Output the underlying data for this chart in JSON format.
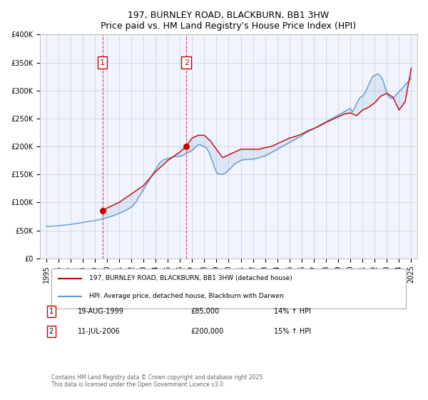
{
  "title": "197, BURNLEY ROAD, BLACKBURN, BB1 3HW",
  "subtitle": "Price paid vs. HM Land Registry's House Price Index (HPI)",
  "xlabel": "",
  "ylabel": "",
  "ylim": [
    0,
    400000
  ],
  "yticks": [
    0,
    50000,
    100000,
    150000,
    200000,
    250000,
    300000,
    350000,
    400000
  ],
  "ytick_labels": [
    "£0",
    "£50K",
    "£100K",
    "£150K",
    "£200K",
    "£250K",
    "£300K",
    "£350K",
    "£400K"
  ],
  "background_color": "#f0f4ff",
  "plot_bg_color": "#f0f4ff",
  "grid_color": "#cccccc",
  "line1_color": "#cc0000",
  "line2_color": "#6699cc",
  "sale1_year": 1999.63,
  "sale1_price": 85000,
  "sale2_year": 2006.53,
  "sale2_price": 200000,
  "sale1_label": "1",
  "sale2_label": "2",
  "legend_line1": "197, BURNLEY ROAD, BLACKBURN, BB1 3HW (detached house)",
  "legend_line2": "HPI: Average price, detached house, Blackburn with Darwen",
  "table_rows": [
    {
      "num": "1",
      "date": "19-AUG-1999",
      "price": "£85,000",
      "hpi": "14% ↑ HPI"
    },
    {
      "num": "2",
      "date": "11-JUL-2006",
      "price": "£200,000",
      "hpi": "15% ↑ HPI"
    }
  ],
  "footnote": "Contains HM Land Registry data © Crown copyright and database right 2025.\nThis data is licensed under the Open Government Licence v3.0.",
  "hpi_data": {
    "years": [
      1995.0,
      1995.08,
      1995.17,
      1995.25,
      1995.33,
      1995.42,
      1995.5,
      1995.58,
      1995.67,
      1995.75,
      1995.83,
      1995.92,
      1996.0,
      1996.08,
      1996.17,
      1996.25,
      1996.33,
      1996.42,
      1996.5,
      1996.58,
      1996.67,
      1996.75,
      1996.83,
      1996.92,
      1997.0,
      1997.08,
      1997.17,
      1997.25,
      1997.33,
      1997.42,
      1997.5,
      1997.58,
      1997.67,
      1997.75,
      1997.83,
      1997.92,
      1998.0,
      1998.08,
      1998.17,
      1998.25,
      1998.33,
      1998.42,
      1998.5,
      1998.58,
      1998.67,
      1998.75,
      1998.83,
      1998.92,
      1999.0,
      1999.08,
      1999.17,
      1999.25,
      1999.33,
      1999.42,
      1999.5,
      1999.58,
      1999.67,
      1999.75,
      1999.83,
      1999.92,
      2000.0,
      2000.08,
      2000.17,
      2000.25,
      2000.33,
      2000.42,
      2000.5,
      2000.58,
      2000.67,
      2000.75,
      2000.83,
      2000.92,
      2001.0,
      2001.08,
      2001.17,
      2001.25,
      2001.33,
      2001.42,
      2001.5,
      2001.58,
      2001.67,
      2001.75,
      2001.83,
      2001.92,
      2002.0,
      2002.08,
      2002.17,
      2002.25,
      2002.33,
      2002.42,
      2002.5,
      2002.58,
      2002.67,
      2002.75,
      2002.83,
      2002.92,
      2003.0,
      2003.08,
      2003.17,
      2003.25,
      2003.33,
      2003.42,
      2003.5,
      2003.58,
      2003.67,
      2003.75,
      2003.83,
      2003.92,
      2004.0,
      2004.08,
      2004.17,
      2004.25,
      2004.33,
      2004.42,
      2004.5,
      2004.58,
      2004.67,
      2004.75,
      2004.83,
      2004.92,
      2005.0,
      2005.08,
      2005.17,
      2005.25,
      2005.33,
      2005.42,
      2005.5,
      2005.58,
      2005.67,
      2005.75,
      2005.83,
      2005.92,
      2006.0,
      2006.08,
      2006.17,
      2006.25,
      2006.33,
      2006.42,
      2006.5,
      2006.58,
      2006.67,
      2006.75,
      2006.83,
      2006.92,
      2007.0,
      2007.08,
      2007.17,
      2007.25,
      2007.33,
      2007.42,
      2007.5,
      2007.58,
      2007.67,
      2007.75,
      2007.83,
      2007.92,
      2008.0,
      2008.08,
      2008.17,
      2008.25,
      2008.33,
      2008.42,
      2008.5,
      2008.58,
      2008.67,
      2008.75,
      2008.83,
      2008.92,
      2009.0,
      2009.08,
      2009.17,
      2009.25,
      2009.33,
      2009.42,
      2009.5,
      2009.58,
      2009.67,
      2009.75,
      2009.83,
      2009.92,
      2010.0,
      2010.08,
      2010.17,
      2010.25,
      2010.33,
      2010.42,
      2010.5,
      2010.58,
      2010.67,
      2010.75,
      2010.83,
      2010.92,
      2011.0,
      2011.08,
      2011.17,
      2011.25,
      2011.33,
      2011.42,
      2011.5,
      2011.58,
      2011.67,
      2011.75,
      2011.83,
      2011.92,
      2012.0,
      2012.08,
      2012.17,
      2012.25,
      2012.33,
      2012.42,
      2012.5,
      2012.58,
      2012.67,
      2012.75,
      2012.83,
      2012.92,
      2013.0,
      2013.08,
      2013.17,
      2013.25,
      2013.33,
      2013.42,
      2013.5,
      2013.58,
      2013.67,
      2013.75,
      2013.83,
      2013.92,
      2014.0,
      2014.08,
      2014.17,
      2014.25,
      2014.33,
      2014.42,
      2014.5,
      2014.58,
      2014.67,
      2014.75,
      2014.83,
      2014.92,
      2015.0,
      2015.08,
      2015.17,
      2015.25,
      2015.33,
      2015.42,
      2015.5,
      2015.58,
      2015.67,
      2015.75,
      2015.83,
      2015.92,
      2016.0,
      2016.08,
      2016.17,
      2016.25,
      2016.33,
      2016.42,
      2016.5,
      2016.58,
      2016.67,
      2016.75,
      2016.83,
      2016.92,
      2017.0,
      2017.08,
      2017.17,
      2017.25,
      2017.33,
      2017.42,
      2017.5,
      2017.58,
      2017.67,
      2017.75,
      2017.83,
      2017.92,
      2018.0,
      2018.08,
      2018.17,
      2018.25,
      2018.33,
      2018.42,
      2018.5,
      2018.58,
      2018.67,
      2018.75,
      2018.83,
      2018.92,
      2019.0,
      2019.08,
      2019.17,
      2019.25,
      2019.33,
      2019.42,
      2019.5,
      2019.58,
      2019.67,
      2019.75,
      2019.83,
      2019.92,
      2020.0,
      2020.08,
      2020.17,
      2020.25,
      2020.33,
      2020.42,
      2020.5,
      2020.58,
      2020.67,
      2020.75,
      2020.83,
      2020.92,
      2021.0,
      2021.08,
      2021.17,
      2021.25,
      2021.33,
      2021.42,
      2021.5,
      2021.58,
      2021.67,
      2021.75,
      2021.83,
      2021.92,
      2022.0,
      2022.08,
      2022.17,
      2022.25,
      2022.33,
      2022.42,
      2022.5,
      2022.58,
      2022.67,
      2022.75,
      2022.83,
      2022.92,
      2023.0,
      2023.08,
      2023.17,
      2023.25,
      2023.33,
      2023.42,
      2023.5,
      2023.58,
      2023.67,
      2023.75,
      2023.83,
      2023.92,
      2024.0,
      2024.08,
      2024.17,
      2024.25,
      2024.33,
      2024.42,
      2024.5,
      2024.58,
      2024.67,
      2024.75,
      2024.83,
      2024.92,
      2025.0
    ],
    "hpi_values": [
      58000,
      57500,
      57200,
      57000,
      57100,
      57300,
      57500,
      57600,
      57800,
      57900,
      58000,
      58200,
      58300,
      58500,
      58700,
      58900,
      59000,
      59200,
      59500,
      59700,
      59900,
      60000,
      60200,
      60400,
      60600,
      60900,
      61200,
      61500,
      61700,
      62000,
      62300,
      62500,
      62800,
      63100,
      63400,
      63700,
      64000,
      64300,
      64700,
      65100,
      65400,
      65700,
      66000,
      66300,
      66500,
      66700,
      67000,
      67200,
      67500,
      67800,
      68200,
      68600,
      69000,
      69400,
      69800,
      70200,
      70700,
      71200,
      71600,
      72100,
      72600,
      73200,
      73800,
      74400,
      75000,
      75600,
      76200,
      76800,
      77500,
      78200,
      78900,
      79600,
      80400,
      81200,
      82000,
      82900,
      83700,
      84600,
      85500,
      86500,
      87400,
      88400,
      89400,
      90400,
      91500,
      93000,
      95000,
      97000,
      99500,
      102000,
      105000,
      108000,
      111000,
      114000,
      117000,
      120000,
      123000,
      126000,
      129000,
      132000,
      135000,
      138000,
      141000,
      144000,
      147000,
      150000,
      153000,
      156000,
      159000,
      162000,
      165000,
      168000,
      170000,
      172000,
      174000,
      175000,
      176000,
      177000,
      177500,
      178000,
      178500,
      179000,
      179500,
      180000,
      180500,
      181000,
      181500,
      182000,
      182000,
      182000,
      182000,
      182000,
      182500,
      183000,
      183500,
      184000,
      185000,
      186000,
      187000,
      188000,
      189000,
      190000,
      191000,
      192000,
      193000,
      194500,
      196000,
      198000,
      200000,
      202000,
      203000,
      203500,
      203000,
      202000,
      201000,
      200500,
      200000,
      199000,
      197000,
      195000,
      192000,
      188000,
      183000,
      178000,
      173000,
      168000,
      163000,
      158500,
      154000,
      152000,
      151000,
      150500,
      150000,
      150000,
      150500,
      151000,
      152000,
      153000,
      154500,
      156000,
      158000,
      159500,
      161000,
      163000,
      165000,
      167000,
      168500,
      170000,
      171000,
      172000,
      173000,
      174000,
      175000,
      175500,
      176000,
      176000,
      176500,
      177000,
      177000,
      177000,
      177000,
      177000,
      177000,
      177000,
      177500,
      178000,
      178000,
      178500,
      179000,
      179500,
      180000,
      180500,
      181000,
      181500,
      182000,
      182500,
      183000,
      184000,
      185000,
      186000,
      187000,
      188000,
      189000,
      190000,
      191000,
      192000,
      193000,
      194000,
      195000,
      196000,
      197000,
      198000,
      199000,
      200000,
      201000,
      202000,
      203000,
      204000,
      205000,
      206000,
      207000,
      208000,
      209000,
      210000,
      211000,
      212000,
      213000,
      214000,
      215000,
      216000,
      217000,
      218000,
      219000,
      220500,
      222000,
      223000,
      224000,
      225000,
      226000,
      227000,
      228000,
      229000,
      230000,
      231000,
      232000,
      233000,
      234000,
      235000,
      236000,
      237000,
      238000,
      239000,
      240000,
      241000,
      242000,
      243000,
      244000,
      245000,
      246000,
      247000,
      248000,
      249000,
      250000,
      251000,
      252000,
      253000,
      254000,
      255000,
      256000,
      257000,
      258000,
      259000,
      260000,
      261000,
      262000,
      263000,
      264000,
      265000,
      266000,
      267000,
      268000,
      265000,
      262000,
      265000,
      268000,
      272000,
      276000,
      280000,
      283000,
      286000,
      288000,
      289000,
      290000,
      292000,
      295000,
      298000,
      302000,
      306000,
      310000,
      314000,
      318000,
      322000,
      325000,
      326000,
      327000,
      328000,
      329000,
      330000,
      329000,
      327000,
      325000,
      322000,
      318000,
      313000,
      307000,
      301000,
      296000,
      292000,
      289000,
      287000,
      286000,
      286000,
      287000,
      288000,
      290000,
      292000,
      294000,
      296000,
      298000,
      300000,
      302000,
      304000,
      306000,
      308000,
      310000,
      312000,
      314000,
      316000,
      318000,
      320000,
      322000
    ],
    "hpi_indexed_values": [
      58000,
      57500,
      57200,
      57000,
      57100,
      57300,
      57500,
      57600,
      57800,
      57900,
      58000,
      58200,
      58300,
      58500,
      58700,
      58900,
      59000,
      59200,
      59500,
      59700,
      59900,
      60000,
      60200,
      60400,
      60600,
      60900,
      61200,
      61500,
      61700,
      62000,
      62300,
      62500,
      62800,
      63100,
      63400,
      63700,
      64000,
      64300,
      64700,
      65100,
      65400,
      65700,
      66000,
      66300,
      66500,
      66700,
      67000,
      67200,
      67500,
      67800,
      68200,
      68600,
      69000,
      69400,
      69800,
      70200,
      70700,
      71200,
      71600,
      72100,
      72600,
      73200,
      73800,
      74400,
      75000,
      75600,
      76200,
      76800,
      77500,
      78200,
      78900,
      79600,
      80400,
      81200,
      82000,
      82900,
      83700,
      84600,
      85500,
      86500,
      87400,
      88400,
      89400,
      90400,
      91500,
      93000,
      95000,
      97000,
      99500,
      102000,
      105000,
      108000,
      111000,
      114000,
      117000,
      120000,
      123000,
      126000,
      129000,
      132000,
      135000,
      138000,
      141000,
      144000,
      147000,
      150000,
      153000,
      156000,
      159000,
      162000,
      165000,
      168000,
      170000,
      172000,
      174000,
      175000,
      176000,
      177000,
      177500,
      178000,
      178500,
      179000,
      179500,
      180000,
      180500,
      181000,
      181500,
      182000,
      182000,
      182000,
      182000,
      182000,
      182500,
      183000,
      183500,
      184000,
      185000,
      186000,
      187000,
      188000,
      189000,
      190000,
      191000,
      192000,
      193000,
      194500,
      196000,
      198000,
      200000,
      202000,
      203000,
      203500,
      203000,
      202000,
      201000,
      200500,
      200000,
      199000,
      197000,
      195000,
      192000,
      188000,
      183000,
      178000,
      173000,
      168000,
      163000,
      158500,
      154000,
      152000,
      151000,
      150500,
      150000,
      150000,
      150500,
      151000,
      152000,
      153000,
      154500,
      156000,
      158000,
      159500,
      161000,
      163000,
      165000,
      167000,
      168500,
      170000,
      171000,
      172000,
      173000,
      174000,
      175000,
      175500,
      176000,
      176000,
      176500,
      177000,
      177000,
      177000,
      177000,
      177000,
      177000,
      177000,
      177500,
      178000,
      178000,
      178500,
      179000,
      179500,
      180000,
      180500,
      181000,
      181500,
      182000,
      182500,
      183000,
      184000,
      185000,
      186000,
      187000,
      188000,
      189000,
      190000,
      191000,
      192000,
      193000,
      194000,
      195000,
      196000,
      197000,
      198000,
      199000,
      200000,
      201000,
      202000,
      203000,
      204000,
      205000,
      206000,
      207000,
      208000,
      209000,
      210000,
      211000,
      212000,
      213000,
      214000,
      215000,
      216000,
      217000,
      218000,
      219000,
      220500,
      222000,
      223000,
      224000,
      225000,
      226000,
      227000,
      228000,
      229000,
      230000,
      231000,
      232000,
      233000,
      234000,
      235000,
      236000,
      237000,
      238000,
      239000,
      240000,
      241000,
      242000,
      243000,
      244000,
      245000,
      246000,
      247000,
      248000,
      249000,
      250000,
      251000,
      252000,
      253000,
      254000,
      255000,
      256000,
      257000,
      258000,
      259000,
      260000,
      261000,
      262000,
      263000,
      264000,
      265000,
      266000,
      267000,
      268000,
      265000,
      262000,
      265000,
      268000,
      272000,
      276000,
      280000,
      283000,
      286000,
      288000,
      289000,
      290000,
      292000,
      295000,
      298000,
      302000,
      306000,
      310000,
      314000,
      318000,
      322000,
      325000,
      326000,
      327000,
      328000,
      329000,
      330000,
      329000,
      327000,
      325000,
      322000,
      318000,
      313000,
      307000,
      301000,
      296000,
      292000,
      289000,
      287000,
      286000,
      286000,
      287000,
      288000,
      290000,
      292000,
      294000,
      296000,
      298000,
      300000,
      302000,
      304000,
      306000,
      308000,
      310000,
      312000,
      314000,
      316000,
      318000,
      320000,
      322000
    ]
  },
  "price_data": {
    "years": [
      1999.63,
      2006.53
    ],
    "prices": [
      85000,
      200000
    ]
  },
  "price_line_data": {
    "years": [
      1999.63,
      1999.63,
      2000.0,
      2001.0,
      2002.0,
      2003.0,
      2004.0,
      2005.0,
      2006.0,
      2006.5,
      2007.0,
      2007.5,
      2008.0,
      2008.5,
      2009.0,
      2009.5,
      2010.0,
      2010.5,
      2011.0,
      2011.5,
      2012.0,
      2012.5,
      2013.0,
      2013.5,
      2014.0,
      2014.5,
      2015.0,
      2015.5,
      2016.0,
      2016.5,
      2017.0,
      2017.5,
      2018.0,
      2018.5,
      2019.0,
      2019.5,
      2020.0,
      2020.5,
      2021.0,
      2021.5,
      2022.0,
      2022.5,
      2023.0,
      2023.5,
      2024.0,
      2024.5,
      2025.0
    ],
    "prices": [
      85000,
      85000,
      90000,
      100000,
      115000,
      130000,
      155000,
      175000,
      190000,
      200000,
      215000,
      220000,
      220000,
      210000,
      195000,
      180000,
      185000,
      190000,
      195000,
      195000,
      195000,
      195000,
      198000,
      200000,
      205000,
      210000,
      215000,
      218000,
      222000,
      228000,
      232000,
      237000,
      243000,
      248000,
      253000,
      258000,
      260000,
      255000,
      265000,
      270000,
      278000,
      290000,
      295000,
      288000,
      265000,
      280000,
      340000
    ]
  },
  "xlim": [
    1994.5,
    2025.5
  ],
  "xticks": [
    1995,
    1996,
    1997,
    1998,
    1999,
    2000,
    2001,
    2002,
    2003,
    2004,
    2005,
    2006,
    2007,
    2008,
    2009,
    2010,
    2011,
    2012,
    2013,
    2014,
    2015,
    2016,
    2017,
    2018,
    2019,
    2020,
    2021,
    2022,
    2023,
    2024,
    2025
  ]
}
